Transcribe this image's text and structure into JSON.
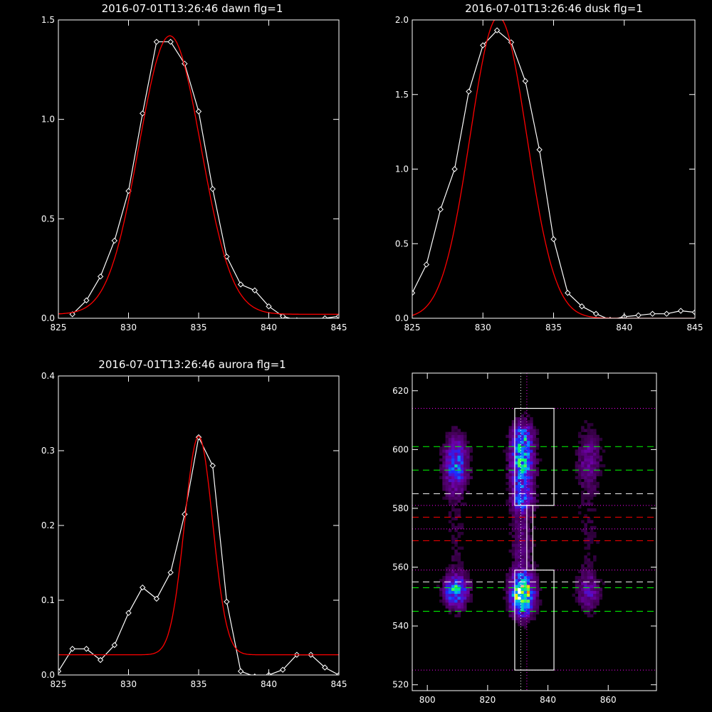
{
  "chart_data": [
    {
      "type": "line",
      "title": "2016-07-01T13:26:46 dawn flg=1",
      "xlim": [
        825,
        845
      ],
      "ylim": [
        0,
        1.5
      ],
      "xticks": [
        "825",
        "830",
        "835",
        "840",
        "845"
      ],
      "yticks": [
        "0.0",
        "0.5",
        "1.0",
        "1.5"
      ],
      "series": [
        {
          "x": [
            826,
            827,
            828,
            829,
            830,
            831,
            832,
            833,
            834,
            835,
            836,
            837,
            838,
            839,
            840,
            841,
            842,
            843,
            844,
            845
          ],
          "values": [
            0.02,
            0.09,
            0.21,
            0.39,
            0.64,
            1.03,
            1.39,
            1.39,
            1.28,
            1.04,
            0.65,
            0.31,
            0.17,
            0.14,
            0.06,
            0.01,
            -0.01,
            -0.02,
            0.0,
            0.01
          ],
          "color": "#ffffff",
          "markers": true
        },
        {
          "gaussian": {
            "amp": 1.4,
            "center": 832.95,
            "sigma": 2.2,
            "offset": 0.02
          },
          "color": "#ff0000"
        }
      ]
    },
    {
      "type": "line",
      "title": "2016-07-01T13:26:46 dusk flg=1",
      "xlim": [
        825,
        845
      ],
      "ylim": [
        0,
        2.0
      ],
      "xticks": [
        "825",
        "830",
        "835",
        "840",
        "845"
      ],
      "yticks": [
        "0.0",
        "0.5",
        "1.0",
        "1.5",
        "2.0"
      ],
      "series": [
        {
          "x": [
            825,
            826,
            827,
            828,
            829,
            830,
            831,
            832,
            833,
            834,
            835,
            836,
            837,
            838,
            839,
            840,
            841,
            842,
            843,
            844,
            845
          ],
          "values": [
            0.17,
            0.36,
            0.73,
            1.0,
            1.52,
            1.83,
            1.93,
            1.85,
            1.59,
            1.13,
            0.53,
            0.17,
            0.08,
            0.03,
            -0.01,
            0.01,
            0.02,
            0.03,
            0.03,
            0.05,
            0.04
          ],
          "color": "#ffffff",
          "markers": true
        },
        {
          "gaussian": {
            "amp": 2.02,
            "center": 831.1,
            "sigma": 2.0,
            "offset": 0.0
          },
          "color": "#ff0000"
        }
      ]
    },
    {
      "type": "line",
      "title": "2016-07-01T13:26:46 aurora flg=1",
      "xlim": [
        825,
        845
      ],
      "ylim": [
        0,
        0.4
      ],
      "xticks": [
        "825",
        "830",
        "835",
        "840",
        "845"
      ],
      "yticks": [
        "0.0",
        "0.1",
        "0.2",
        "0.3",
        "0.4"
      ],
      "series": [
        {
          "x": [
            825,
            826,
            827,
            828,
            829,
            830,
            831,
            832,
            833,
            834,
            835,
            836,
            837,
            838,
            839,
            840,
            841,
            842,
            843,
            844,
            845
          ],
          "values": [
            0.005,
            0.035,
            0.035,
            0.02,
            0.04,
            0.083,
            0.117,
            0.102,
            0.137,
            0.215,
            0.318,
            0.28,
            0.098,
            0.005,
            -0.002,
            0.0,
            0.007,
            0.027,
            0.027,
            0.01,
            0.0
          ],
          "color": "#ffffff",
          "markers": true
        },
        {
          "gaussian": {
            "amp": 0.292,
            "center": 835.0,
            "sigma": 1.0,
            "offset": 0.027
          },
          "color": "#ff0000"
        }
      ]
    },
    {
      "type": "heatmap",
      "xlim": [
        795,
        876
      ],
      "ylim": [
        518,
        626
      ],
      "xticks": [
        "800",
        "820",
        "840",
        "860"
      ],
      "yticks": [
        "520",
        "540",
        "560",
        "580",
        "600",
        "620"
      ],
      "blobs": [
        {
          "x": 809.5,
          "y": 595,
          "sx": 2.5,
          "sy": 6,
          "amp": 0.42
        },
        {
          "x": 831.5,
          "y": 596,
          "sx": 2.5,
          "sy": 7,
          "amp": 0.55
        },
        {
          "x": 831.5,
          "y": 605,
          "sx": 2.0,
          "sy": 2.5,
          "amp": 0.25
        },
        {
          "x": 831.5,
          "y": 583,
          "sx": 2.2,
          "sy": 2.5,
          "amp": 0.28
        },
        {
          "x": 831.5,
          "y": 551,
          "sx": 2.5,
          "sy": 4.5,
          "amp": 0.85
        },
        {
          "x": 809.5,
          "y": 552,
          "sx": 2.5,
          "sy": 3.5,
          "amp": 0.52
        },
        {
          "x": 853.5,
          "y": 597,
          "sx": 2.5,
          "sy": 6,
          "amp": 0.17
        },
        {
          "x": 853.5,
          "y": 552,
          "sx": 2.5,
          "sy": 4,
          "amp": 0.22
        },
        {
          "x": 831.5,
          "y": 570,
          "sx": 2.5,
          "sy": 12,
          "amp": 0.13
        },
        {
          "x": 809.5,
          "y": 570,
          "sx": 2.5,
          "sy": 14,
          "amp": 0.05
        },
        {
          "x": 853.5,
          "y": 575,
          "sx": 2.5,
          "sy": 18,
          "amp": 0.05
        }
      ],
      "hlines": [
        {
          "y": 614,
          "color": "#ff00ff",
          "style": "dotted"
        },
        {
          "y": 601,
          "color": "#00ff00",
          "style": "dashed"
        },
        {
          "y": 593,
          "color": "#00ff00",
          "style": "dashed"
        },
        {
          "y": 585,
          "color": "#ffffff",
          "style": "dashed"
        },
        {
          "y": 581,
          "color": "#ff00ff",
          "style": "dotted"
        },
        {
          "y": 577,
          "color": "#ff0000",
          "style": "dashed"
        },
        {
          "y": 573,
          "color": "#ff00ff",
          "style": "dotted"
        },
        {
          "y": 569,
          "color": "#ff0000",
          "style": "dashed"
        },
        {
          "y": 559,
          "color": "#ff00ff",
          "style": "dotted"
        },
        {
          "y": 555,
          "color": "#ffffff",
          "style": "dashed"
        },
        {
          "y": 553,
          "color": "#00ff00",
          "style": "dashed"
        },
        {
          "y": 545,
          "color": "#00ff00",
          "style": "dashed"
        },
        {
          "y": 525,
          "color": "#ff00ff",
          "style": "dotted"
        }
      ],
      "vlines": [
        {
          "x": 831,
          "color": "#ffffff",
          "style": "dotted"
        },
        {
          "x": 833,
          "color": "#ff00ff",
          "style": "dotted"
        }
      ],
      "boxes": [
        {
          "x0": 829,
          "x1": 842,
          "y0": 581,
          "y1": 614,
          "color": "#ffffff"
        },
        {
          "x0": 833,
          "x1": 835,
          "y0": 559,
          "y1": 581,
          "color": "#ffffff"
        },
        {
          "x0": 829,
          "x1": 842,
          "y0": 525,
          "y1": 559,
          "color": "#ffffff"
        }
      ]
    }
  ]
}
